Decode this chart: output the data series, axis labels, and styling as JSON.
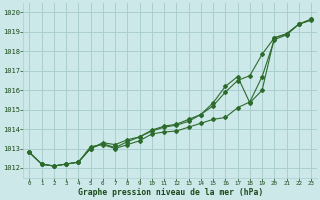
{
  "title": "Graphe pression niveau de la mer (hPa)",
  "bg_color": "#cce8e8",
  "grid_color": "#aacfcf",
  "line_color": "#2d6b2d",
  "text_color": "#1a4a1a",
  "xlim": [
    -0.5,
    23.5
  ],
  "ylim": [
    1011.5,
    1020.5
  ],
  "xticks": [
    0,
    1,
    2,
    3,
    4,
    5,
    6,
    7,
    8,
    9,
    10,
    11,
    12,
    13,
    14,
    15,
    16,
    17,
    18,
    19,
    20,
    21,
    22,
    23
  ],
  "yticks": [
    1012,
    1013,
    1014,
    1015,
    1016,
    1017,
    1018,
    1019,
    1020
  ],
  "line1_x": [
    0,
    1,
    2,
    3,
    4,
    5,
    6,
    7,
    8,
    9,
    10,
    11,
    12,
    13,
    14,
    15,
    16,
    17,
    18,
    19,
    20,
    21,
    22,
    23
  ],
  "line1_y": [
    1012.8,
    1012.2,
    1012.1,
    1012.2,
    1012.3,
    1013.1,
    1013.2,
    1013.0,
    1013.2,
    1013.4,
    1013.75,
    1013.85,
    1013.9,
    1014.1,
    1014.3,
    1014.5,
    1014.6,
    1015.1,
    1015.4,
    1016.7,
    1018.6,
    1018.85,
    1019.4,
    1019.6
  ],
  "line2_x": [
    0,
    1,
    2,
    3,
    4,
    5,
    6,
    7,
    8,
    9,
    10,
    11,
    12,
    13,
    14,
    15,
    16,
    17,
    18,
    19,
    20,
    21,
    22,
    23
  ],
  "line2_y": [
    1012.8,
    1012.2,
    1012.1,
    1012.2,
    1012.3,
    1013.0,
    1013.3,
    1013.2,
    1013.45,
    1013.6,
    1013.95,
    1014.15,
    1014.25,
    1014.5,
    1014.75,
    1015.2,
    1015.9,
    1016.5,
    1016.75,
    1017.85,
    1018.7,
    1018.9,
    1019.4,
    1019.65
  ],
  "line3_x": [
    0,
    1,
    2,
    3,
    4,
    5,
    6,
    7,
    8,
    9,
    10,
    11,
    12,
    13,
    14,
    15,
    16,
    17,
    18,
    19,
    20,
    21,
    22,
    23
  ],
  "line3_y": [
    1012.8,
    1012.2,
    1012.1,
    1012.2,
    1012.3,
    1013.0,
    1013.25,
    1013.05,
    1013.35,
    1013.6,
    1013.9,
    1014.1,
    1014.2,
    1014.4,
    1014.75,
    1015.35,
    1016.2,
    1016.7,
    1015.35,
    1016.0,
    1018.7,
    1018.9,
    1019.4,
    1019.65
  ]
}
